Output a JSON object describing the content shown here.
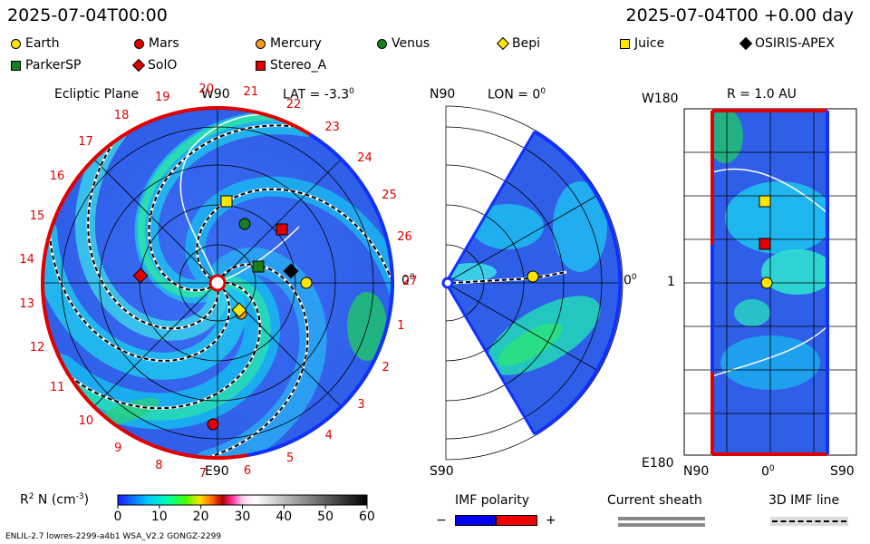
{
  "header": {
    "date_left": "2025-07-04T00:00",
    "date_right": "2025-07-04T00 +0.00 day"
  },
  "legend_bodies": [
    {
      "name": "Earth",
      "color": "#ffe600",
      "shape": "circle"
    },
    {
      "name": "Mars",
      "color": "#e00000",
      "shape": "circle"
    },
    {
      "name": "Mercury",
      "color": "#f39a1c",
      "shape": "circle"
    },
    {
      "name": "Venus",
      "color": "#17801d",
      "shape": "circle"
    },
    {
      "name": "Bepi",
      "color": "#ffe600",
      "shape": "diamond"
    },
    {
      "name": "Juice",
      "color": "#ffe600",
      "shape": "square"
    },
    {
      "name": "OSIRIS-APEX",
      "color": "#000000",
      "shape": "diamond"
    },
    {
      "name": "ParkerSP",
      "color": "#17801d",
      "shape": "square"
    },
    {
      "name": "SolO",
      "color": "#e00000",
      "shape": "diamond"
    },
    {
      "name": "Stereo_A",
      "color": "#e00000",
      "shape": "square"
    }
  ],
  "ecliptic": {
    "title": "Ecliptic Plane",
    "w90": "W90",
    "lat": "LAT = -3.3",
    "e90": "E90",
    "zero": "0",
    "deg": "0",
    "rot_labels": [
      "27",
      "1",
      "2",
      "3",
      "4",
      "5",
      "6",
      "7",
      "8",
      "9",
      "10",
      "11",
      "12",
      "13",
      "14",
      "15",
      "16",
      "17",
      "18",
      "19",
      "20",
      "21",
      "22",
      "23",
      "24",
      "25",
      "26"
    ]
  },
  "meridional": {
    "n90": "N90",
    "lon": "LON = 0",
    "s90": "S90",
    "zero": "0",
    "deg": "0"
  },
  "radial": {
    "w180": "W180",
    "r": "R = 1.0 AU",
    "e180": "E180",
    "n90": "N90",
    "zero": "0",
    "deg": "0",
    "s90": "S90",
    "one": "1"
  },
  "colorbar": {
    "label_main": "R",
    "label_sup": "2",
    "label_rest": " N (cm",
    "label_exp": "-3",
    "label_close": ")",
    "ticks": [
      "0",
      "10",
      "20",
      "30",
      "40",
      "50",
      "60"
    ]
  },
  "imf": {
    "title": "IMF polarity",
    "minus": "−",
    "plus": "+",
    "neg_color": "#0000ee",
    "pos_color": "#ee0000"
  },
  "sheath": {
    "title": "Current sheath"
  },
  "line3d": {
    "title": "3D IMF line"
  },
  "footer": {
    "left": "ENLIL-2.7 lowres-2299-a4b1 WSA_V2.2 GONGZ-2299"
  },
  "chart_data": [
    {
      "type": "heatmap",
      "title": "Ecliptic Plane",
      "variable": "R2 N (cm-3)",
      "range": [
        0,
        60
      ],
      "bodies": [
        "Earth",
        "Mars",
        "Mercury",
        "Venus",
        "Bepi",
        "Juice",
        "OSIRIS-APEX",
        "ParkerSP",
        "SolO",
        "Stereo_A"
      ]
    },
    {
      "type": "heatmap",
      "title": "LON = 0",
      "bodies": [
        "Earth"
      ]
    },
    {
      "type": "heatmap",
      "title": "R = 1.0 AU",
      "x_ticks": [
        "N90",
        "0",
        "S90"
      ],
      "y_ticks": [
        "W180",
        "1",
        "E180"
      ],
      "bodies": [
        "Juice",
        "Stereo_A",
        "Earth"
      ]
    }
  ]
}
